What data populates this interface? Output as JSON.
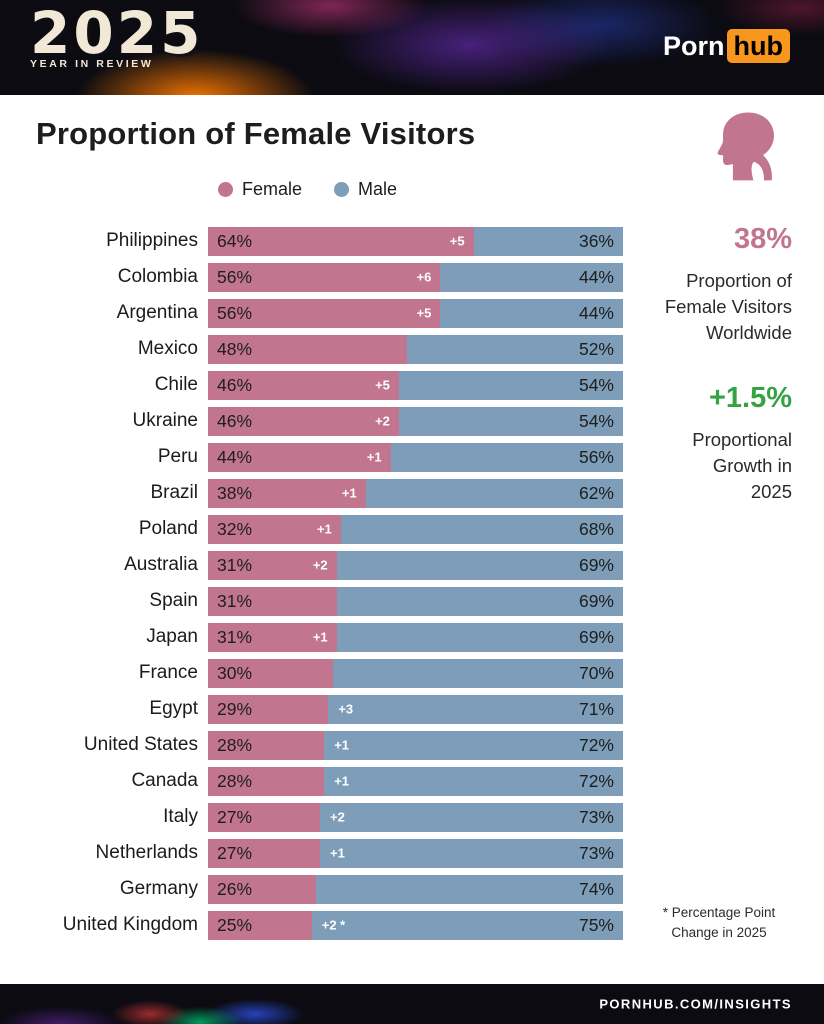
{
  "header": {
    "year": "2025",
    "subtitle": "YEAR IN REVIEW",
    "logo_part1": "Porn",
    "logo_part2": "hub"
  },
  "page_title": "Proportion of Female Visitors",
  "legend": [
    {
      "label": "Female"
    },
    {
      "label": "Male"
    }
  ],
  "chart_data": {
    "type": "bar",
    "orientation": "horizontal",
    "stacked": true,
    "title": "Proportion of Female Visitors",
    "categories": [
      "Philippines",
      "Colombia",
      "Argentina",
      "Mexico",
      "Chile",
      "Ukraine",
      "Peru",
      "Brazil",
      "Poland",
      "Australia",
      "Spain",
      "Japan",
      "France",
      "Egypt",
      "United States",
      "Canada",
      "Italy",
      "Netherlands",
      "Germany",
      "United Kingdom"
    ],
    "series": [
      {
        "name": "Female",
        "values": [
          64,
          56,
          56,
          48,
          46,
          46,
          44,
          38,
          32,
          31,
          31,
          31,
          30,
          29,
          28,
          28,
          27,
          27,
          26,
          25
        ]
      },
      {
        "name": "Male",
        "values": [
          36,
          44,
          44,
          52,
          54,
          54,
          56,
          62,
          68,
          69,
          69,
          69,
          70,
          71,
          72,
          72,
          73,
          73,
          74,
          75
        ]
      }
    ],
    "change_labels": [
      "+5",
      "+6",
      "+5",
      "",
      "+5",
      "+2",
      "+1",
      "+1",
      "+1",
      "+2",
      "",
      "+1",
      "",
      "+3",
      "+1",
      "+1",
      "+2",
      "+1",
      "",
      "+2 *"
    ],
    "value_unit": "%",
    "xlim": [
      0,
      100
    ],
    "grid": false,
    "legend_position": "top"
  },
  "stats": {
    "worldwide_value": "38%",
    "worldwide_label": "Proportion of Female Visitors Worldwide",
    "growth_value": "+1.5%",
    "growth_label": "Proportional Growth in 2025"
  },
  "footnote": "* Percentage Point Change in 2025",
  "footer": {
    "text": "PORNHUB.COM/INSIGHTS"
  },
  "colors": {
    "female": "#c1758e",
    "male": "#7d9db8",
    "growth_green": "#33a344",
    "logo_orange": "#f7971d",
    "banner_bg": "#0b0b11"
  }
}
